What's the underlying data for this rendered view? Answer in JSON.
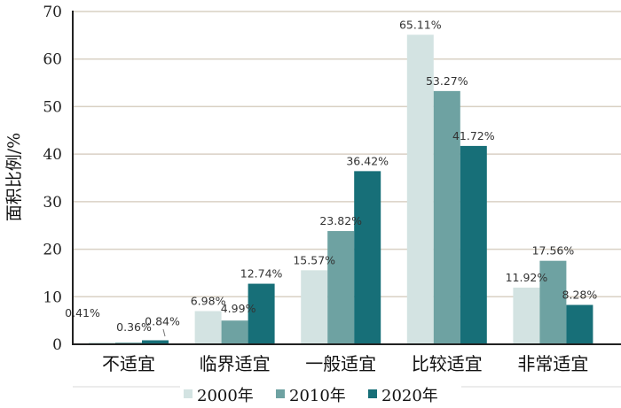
{
  "chart_data": {
    "type": "bar",
    "title": "",
    "xlabel": "",
    "ylabel": "面积比例/%",
    "ylim": [
      0,
      70
    ],
    "yticks": [
      0,
      10,
      20,
      30,
      40,
      50,
      60,
      70
    ],
    "grid": true,
    "legend_position": "bottom",
    "categories": [
      "不适宜",
      "临界适宜",
      "一般适宜",
      "比较适宜",
      "非常适宜"
    ],
    "series": [
      {
        "name": "2000年",
        "color": "#d3e3e2",
        "values": [
          0.41,
          6.98,
          15.57,
          65.11,
          11.92
        ],
        "labels": [
          "0.41%",
          "6.98%",
          "15.57%",
          "65.11%",
          "11.92%"
        ]
      },
      {
        "name": "2010年",
        "color": "#6ea2a2",
        "values": [
          0.36,
          4.99,
          23.82,
          53.27,
          17.56
        ],
        "labels": [
          "0.36%",
          "4.99%",
          "23.82%",
          "53.27%",
          "17.56%"
        ]
      },
      {
        "name": "2020年",
        "color": "#176f78",
        "values": [
          0.84,
          12.74,
          36.42,
          41.72,
          8.28
        ],
        "labels": [
          "0.84%",
          "12.74%",
          "36.42%",
          "41.72%",
          "8.28%"
        ]
      }
    ]
  }
}
